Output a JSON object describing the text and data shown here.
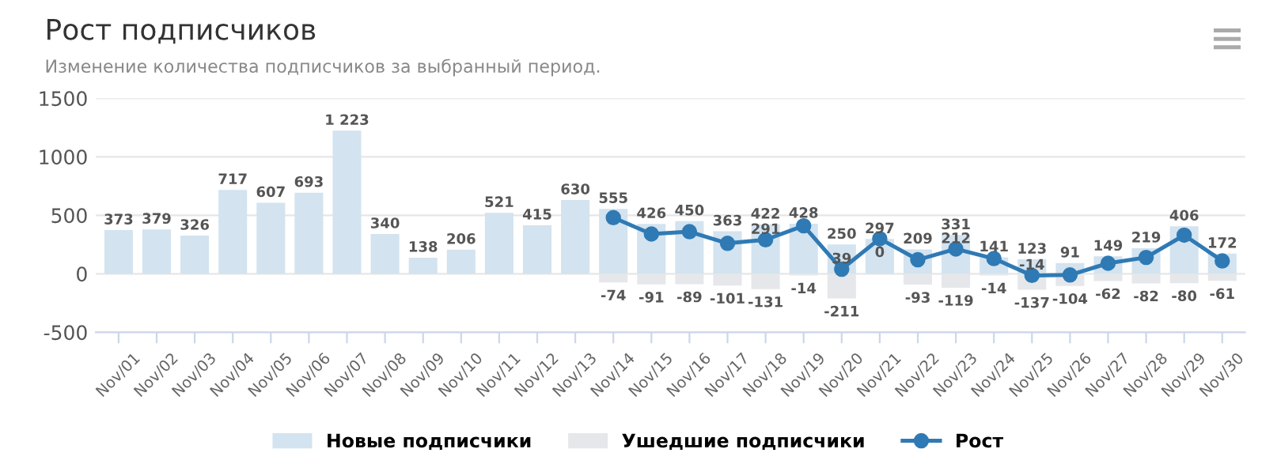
{
  "chart_data": {
    "type": "bar",
    "title": "Рост подписчиков",
    "subtitle": "Изменение количества подписчиков за выбранный период.",
    "categories": [
      "Nov/01",
      "Nov/02",
      "Nov/03",
      "Nov/04",
      "Nov/05",
      "Nov/06",
      "Nov/07",
      "Nov/08",
      "Nov/09",
      "Nov/10",
      "Nov/11",
      "Nov/12",
      "Nov/13",
      "Nov/14",
      "Nov/15",
      "Nov/16",
      "Nov/17",
      "Nov/18",
      "Nov/19",
      "Nov/20",
      "Nov/21",
      "Nov/22",
      "Nov/23",
      "Nov/24",
      "Nov/25",
      "Nov/26",
      "Nov/27",
      "Nov/28",
      "Nov/29",
      "Nov/30"
    ],
    "stacked": true,
    "series": [
      {
        "name": "Новые подписчики",
        "color": "#d3e3ef",
        "values": [
          373,
          379,
          326,
          717,
          607,
          693,
          1223,
          340,
          138,
          206,
          521,
          415,
          630,
          555,
          426,
          450,
          363,
          422,
          428,
          250,
          297,
          209,
          331,
          141,
          123,
          91,
          149,
          219,
          406,
          172
        ],
        "value_labels": [
          "373",
          "379",
          "326",
          "717",
          "607",
          "693",
          "1 223",
          "340",
          "138",
          "206",
          "521",
          "415",
          "630",
          "555",
          "426",
          "450",
          "363",
          "422",
          "428",
          "250",
          "297",
          "209",
          "331",
          "141",
          "123",
          "91",
          "149",
          "219",
          "406",
          "172"
        ]
      },
      {
        "name": "Ушедшие подписчики",
        "color": "#e5e7ea",
        "values": [
          null,
          null,
          null,
          null,
          null,
          null,
          null,
          null,
          null,
          null,
          null,
          null,
          null,
          -74,
          -91,
          -89,
          -101,
          -131,
          -14,
          -211,
          0,
          -93,
          -119,
          -14,
          -137,
          -104,
          -62,
          -82,
          -80,
          -61
        ],
        "value_labels": [
          null,
          null,
          null,
          null,
          null,
          null,
          null,
          null,
          null,
          null,
          null,
          null,
          null,
          "-74",
          "-91",
          "-89",
          "-101",
          "-131",
          "-14",
          "-211",
          "0",
          "-93",
          "-119",
          "-14",
          "-137",
          "-104",
          "-62",
          "-82",
          "-80",
          "-61"
        ]
      },
      {
        "name": "Рост",
        "type": "line",
        "color": "#2f7ab4",
        "marker": "circle",
        "values": [
          null,
          null,
          null,
          null,
          null,
          null,
          null,
          null,
          null,
          null,
          null,
          null,
          null,
          480,
          340,
          360,
          260,
          291,
          410,
          39,
          300,
          120,
          212,
          130,
          -14,
          -10,
          90,
          140,
          330,
          110
        ],
        "value_labels": [
          null,
          null,
          null,
          null,
          null,
          null,
          null,
          null,
          null,
          null,
          null,
          null,
          null,
          null,
          null,
          null,
          null,
          "291",
          null,
          "39",
          null,
          null,
          "212",
          null,
          "-14",
          null,
          null,
          null,
          null,
          null
        ]
      }
    ],
    "ylim": [
      -500,
      1500
    ],
    "yticks": [
      -500,
      0,
      500,
      1000,
      1500
    ],
    "grid": "y",
    "legend": "bottom"
  }
}
